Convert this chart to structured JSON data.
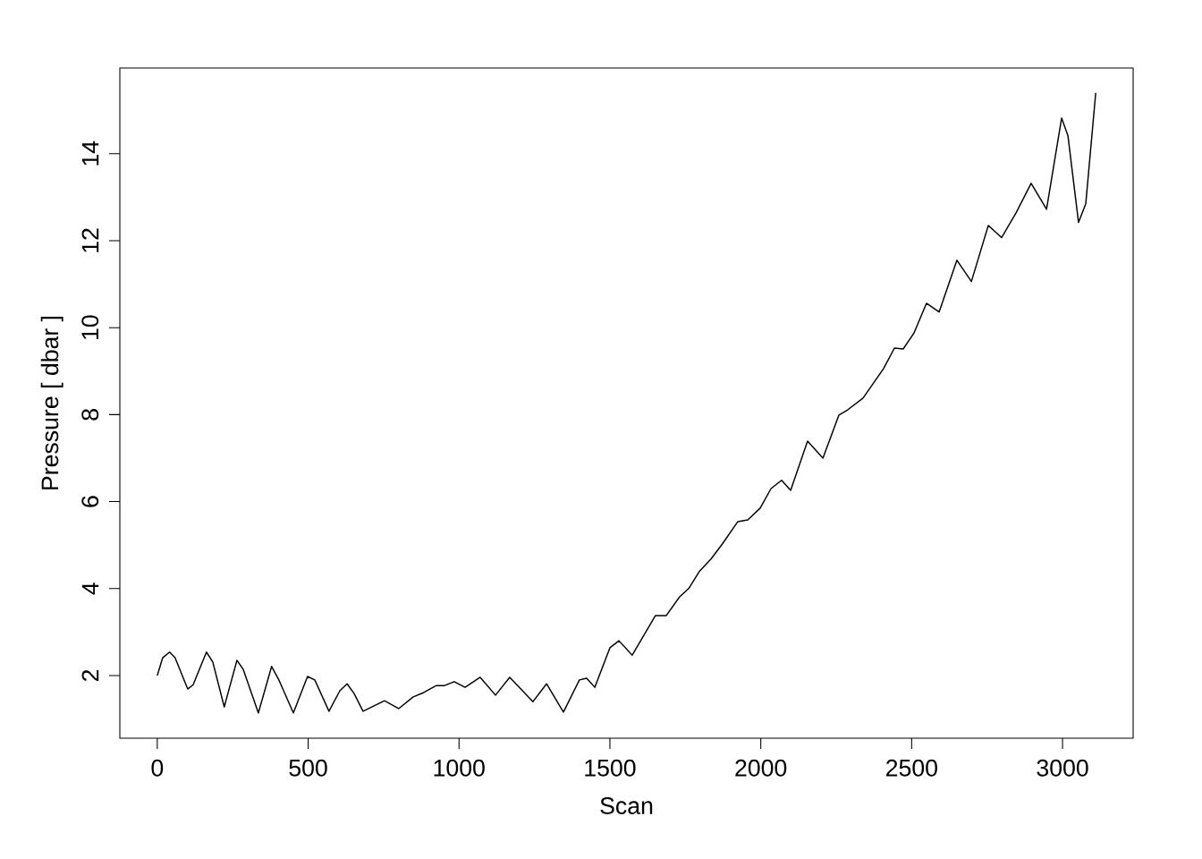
{
  "chart_data": {
    "type": "line",
    "xlabel": "Scan",
    "ylabel": "Pressure [ dbar ]",
    "xlim": [
      -124,
      3234
    ],
    "ylim": [
      0.56,
      15.97
    ],
    "xticks": [
      0,
      500,
      1000,
      1500,
      2000,
      2500,
      3000
    ],
    "yticks": [
      2,
      4,
      6,
      8,
      10,
      12,
      14
    ],
    "series": [
      {
        "color": "#000000",
        "line_style": "solid",
        "x": [
          0,
          18,
          41,
          59,
          101,
          119,
          163,
          184,
          222,
          264,
          285,
          335,
          379,
          403,
          451,
          498,
          522,
          569,
          605,
          629,
          652,
          682,
          753,
          800,
          848,
          883,
          925,
          952,
          984,
          1020,
          1070,
          1121,
          1168,
          1245,
          1290,
          1346,
          1399,
          1423,
          1450,
          1500,
          1530,
          1574,
          1651,
          1687,
          1731,
          1761,
          1796,
          1835,
          1873,
          1924,
          1957,
          1998,
          2034,
          2069,
          2099,
          2155,
          2206,
          2259,
          2288,
          2339,
          2407,
          2443,
          2472,
          2508,
          2549,
          2591,
          2650,
          2698,
          2754,
          2798,
          2846,
          2896,
          2947,
          2997,
          3018,
          3053,
          3077,
          3110
        ],
        "values": [
          2.0,
          2.41,
          2.54,
          2.41,
          1.69,
          1.79,
          2.54,
          2.31,
          1.28,
          2.35,
          2.14,
          1.14,
          2.21,
          1.9,
          1.14,
          1.98,
          1.9,
          1.18,
          1.65,
          1.81,
          1.59,
          1.18,
          1.42,
          1.24,
          1.51,
          1.61,
          1.77,
          1.77,
          1.86,
          1.73,
          1.96,
          1.55,
          1.96,
          1.4,
          1.81,
          1.16,
          1.9,
          1.94,
          1.73,
          2.64,
          2.8,
          2.47,
          3.38,
          3.38,
          3.81,
          4.0,
          4.39,
          4.68,
          5.03,
          5.54,
          5.58,
          5.85,
          6.3,
          6.49,
          6.26,
          7.39,
          7.0,
          7.99,
          8.11,
          8.38,
          9.06,
          9.53,
          9.51,
          9.88,
          10.56,
          10.36,
          11.55,
          11.06,
          12.35,
          12.07,
          12.64,
          13.32,
          12.72,
          14.82,
          14.41,
          12.42,
          12.85,
          15.4
        ]
      }
    ]
  }
}
